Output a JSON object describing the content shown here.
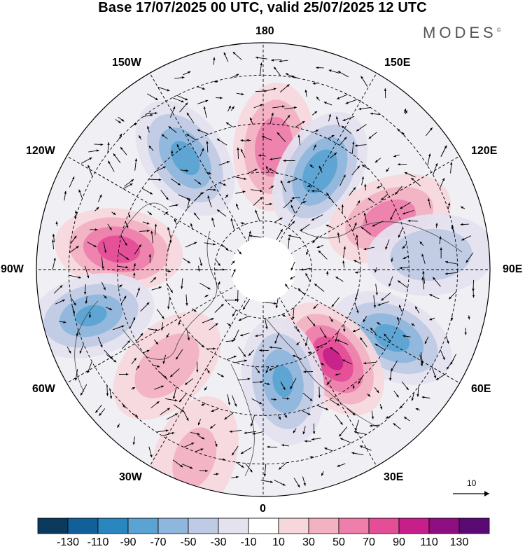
{
  "title": "Base 17/07/2025 00 UTC, valid 25/07/2025 12 UTC",
  "brand": "MODES",
  "brand_mark": "©",
  "longitude_labels": {
    "n180": "180",
    "w150": "150W",
    "e150": "150E",
    "w120": "120W",
    "e120": "120E",
    "w90": "90W",
    "e90": "90E",
    "w60": "60W",
    "e60": "60E",
    "w30": "30W",
    "e30": "30E",
    "s0": "0"
  },
  "reference_vector": {
    "label": "10"
  },
  "colorbar": {
    "colors": [
      "#0b3a5c",
      "#11609a",
      "#2a86bf",
      "#5aa3d2",
      "#8fb6dc",
      "#bfcbe4",
      "#e4e2ef",
      "#ffffff",
      "#f6d8dc",
      "#f2b2c2",
      "#ee7fab",
      "#e44d97",
      "#c61f8a",
      "#8e0f82",
      "#5b0a74"
    ],
    "tick_labels": [
      "-130",
      "-110",
      "-90",
      "-70",
      "-50",
      "-30",
      "-10",
      "10",
      "30",
      "50",
      "70",
      "90",
      "110",
      "130"
    ]
  },
  "anomaly_centres": [
    {
      "lon": -145,
      "lat": 48,
      "value": -75
    },
    {
      "lon": 175,
      "lat": 52,
      "value": 65
    },
    {
      "lon": 150,
      "lat": 55,
      "value": -85
    },
    {
      "lon": 112,
      "lat": 48,
      "value": 60
    },
    {
      "lon": -98,
      "lat": 45,
      "value": 80
    },
    {
      "lon": -75,
      "lat": 35,
      "value": -70
    },
    {
      "lon": 62,
      "lat": 45,
      "value": -75
    },
    {
      "lon": 38,
      "lat": 55,
      "value": 90
    },
    {
      "lon": 10,
      "lat": 55,
      "value": -70
    },
    {
      "lon": 95,
      "lat": 38,
      "value": -45
    },
    {
      "lon": -45,
      "lat": 48,
      "value": 40
    },
    {
      "lon": -20,
      "lat": 28,
      "value": 30
    }
  ]
}
